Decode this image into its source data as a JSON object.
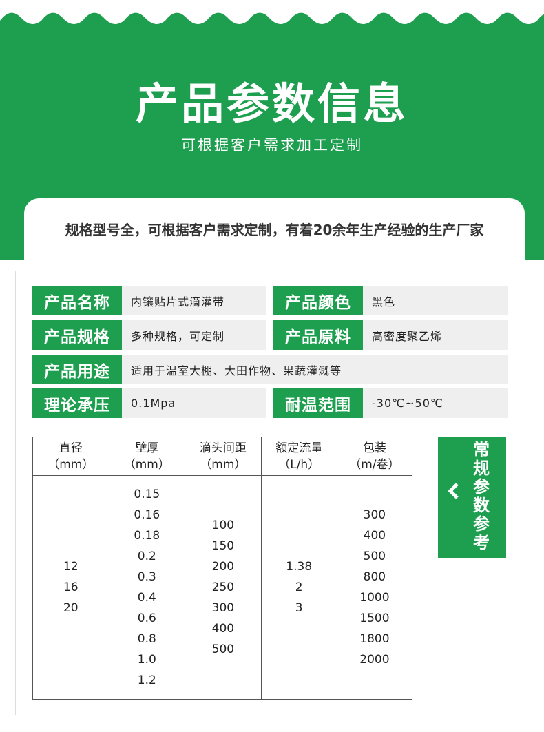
{
  "header": {
    "title": "产品参数信息",
    "subtitle": "可根据客户需求加工定制"
  },
  "banner": "规格型号全，可根据客户需求定制，有着20余年生产经验的生产厂家",
  "specs": [
    {
      "label": "产品名称",
      "value": "内镶贴片式滴灌带"
    },
    {
      "label": "产品颜色",
      "value": "黑色"
    },
    {
      "label": "产品规格",
      "value": "多种规格，可定制"
    },
    {
      "label": "产品原料",
      "value": "高密度聚乙烯"
    },
    {
      "label": "产品用途",
      "value": "适用于温室大棚、大田作物、果蔬灌溉等"
    },
    {
      "label": "理论承压",
      "value": "0.1Mpa"
    },
    {
      "label": "耐温范围",
      "value": "-30℃~50℃"
    }
  ],
  "table": {
    "columns": [
      {
        "name": "直径",
        "unit": "（mm）",
        "values": [
          "12",
          "16",
          "20"
        ]
      },
      {
        "name": "壁厚",
        "unit": "（mm）",
        "values": [
          "0.15",
          "0.16",
          "0.18",
          "0.2",
          "0.3",
          "0.4",
          "0.6",
          "0.8",
          "1.0",
          "1.2"
        ]
      },
      {
        "name": "滴头间距",
        "unit": "（mm）",
        "values": [
          "100",
          "150",
          "200",
          "250",
          "300",
          "400",
          "500"
        ]
      },
      {
        "name": "额定流量",
        "unit": "（L/h）",
        "values": [
          "1.38",
          "2",
          "3"
        ]
      },
      {
        "name": "包装",
        "unit": "（m/卷）",
        "values": [
          "300",
          "400",
          "500",
          "800",
          "1000",
          "1500",
          "1800",
          "2000"
        ]
      }
    ]
  },
  "side_label": "常规参数参考"
}
